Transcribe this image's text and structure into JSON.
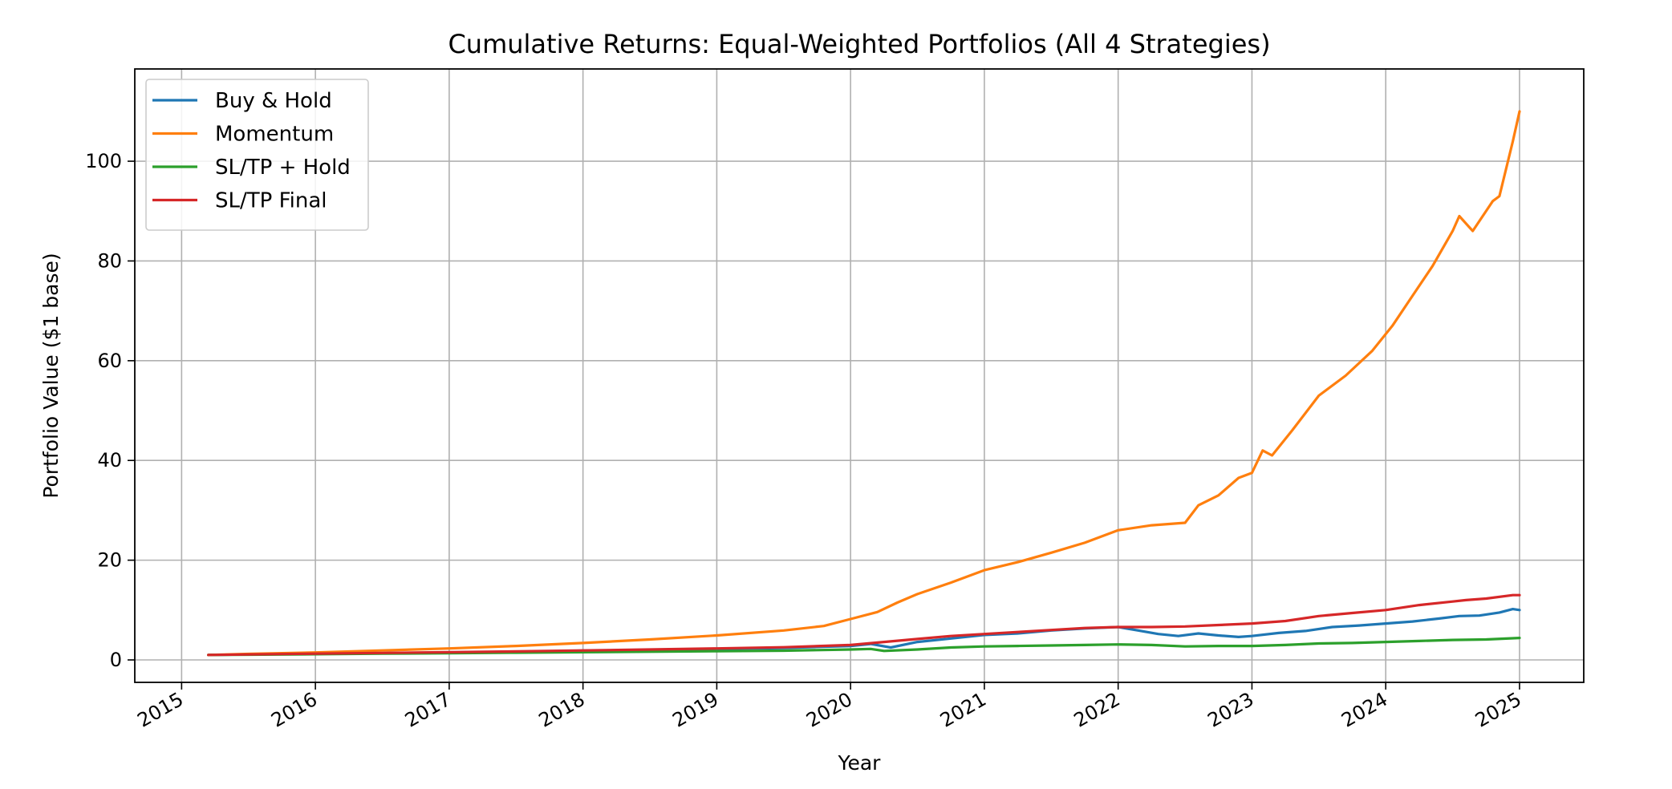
{
  "chart_data": {
    "type": "line",
    "title": "Cumulative Returns: Equal-Weighted Portfolios (All 4 Strategies)",
    "xlabel": "Year",
    "ylabel": "Portfolio Value ($1 base)",
    "xlim": [
      2014.65,
      2025.48
    ],
    "ylim": [
      -4.5,
      118.5
    ],
    "x_ticks": [
      "2015",
      "2016",
      "2017",
      "2018",
      "2019",
      "2020",
      "2021",
      "2022",
      "2023",
      "2024",
      "2025"
    ],
    "y_ticks": [
      "0",
      "20",
      "40",
      "60",
      "80",
      "100"
    ],
    "grid": true,
    "legend_position": "upper-left",
    "series": [
      {
        "name": "Buy & Hold",
        "color": "#1f77b4",
        "x": [
          2015.2,
          2015.5,
          2016.0,
          2016.5,
          2017.0,
          2017.5,
          2018.0,
          2018.5,
          2019.0,
          2019.5,
          2020.0,
          2020.15,
          2020.3,
          2020.5,
          2020.75,
          2021.0,
          2021.25,
          2021.5,
          2021.75,
          2022.0,
          2022.15,
          2022.3,
          2022.45,
          2022.6,
          2022.75,
          2022.9,
          2023.0,
          2023.2,
          2023.4,
          2023.6,
          2023.8,
          2024.0,
          2024.2,
          2024.4,
          2024.55,
          2024.7,
          2024.85,
          2024.95,
          2025.0
        ],
        "values": [
          1.0,
          1.1,
          1.2,
          1.35,
          1.5,
          1.65,
          1.85,
          2.0,
          2.2,
          2.4,
          2.8,
          3.2,
          2.5,
          3.6,
          4.3,
          5.0,
          5.3,
          5.9,
          6.3,
          6.6,
          5.9,
          5.2,
          4.8,
          5.3,
          4.9,
          4.6,
          4.8,
          5.4,
          5.8,
          6.6,
          6.9,
          7.3,
          7.7,
          8.3,
          8.8,
          8.9,
          9.5,
          10.2,
          10.0
        ]
      },
      {
        "name": "Momentum",
        "color": "#ff7f0e",
        "x": [
          2015.2,
          2015.5,
          2016.0,
          2016.5,
          2017.0,
          2017.5,
          2018.0,
          2018.5,
          2019.0,
          2019.5,
          2019.8,
          2020.0,
          2020.2,
          2020.35,
          2020.5,
          2020.75,
          2021.0,
          2021.25,
          2021.5,
          2021.75,
          2022.0,
          2022.25,
          2022.5,
          2022.6,
          2022.75,
          2022.9,
          2023.0,
          2023.08,
          2023.15,
          2023.3,
          2023.5,
          2023.7,
          2023.9,
          2024.05,
          2024.2,
          2024.35,
          2024.5,
          2024.55,
          2024.65,
          2024.8,
          2024.85,
          2024.95,
          2025.0
        ],
        "values": [
          1.0,
          1.2,
          1.5,
          1.9,
          2.3,
          2.8,
          3.4,
          4.1,
          4.9,
          5.9,
          6.8,
          8.2,
          9.6,
          11.5,
          13.2,
          15.5,
          18.0,
          19.6,
          21.5,
          23.5,
          26.0,
          27.0,
          27.5,
          31.0,
          33.0,
          36.5,
          37.5,
          42.0,
          41.0,
          46.0,
          53.0,
          57.0,
          62.0,
          67.0,
          73.0,
          79.0,
          86.0,
          89.0,
          86.0,
          92.0,
          93.0,
          104.0,
          110.0
        ]
      },
      {
        "name": "SL/TP + Hold",
        "color": "#2ca02c",
        "x": [
          2015.2,
          2015.5,
          2016.0,
          2016.5,
          2017.0,
          2017.5,
          2018.0,
          2018.5,
          2019.0,
          2019.5,
          2020.0,
          2020.15,
          2020.25,
          2020.5,
          2020.75,
          2021.0,
          2021.25,
          2021.5,
          2021.75,
          2022.0,
          2022.25,
          2022.5,
          2022.75,
          2023.0,
          2023.25,
          2023.5,
          2023.75,
          2024.0,
          2024.25,
          2024.5,
          2024.75,
          2025.0
        ],
        "values": [
          1.0,
          1.05,
          1.15,
          1.25,
          1.35,
          1.45,
          1.55,
          1.65,
          1.75,
          1.85,
          2.1,
          2.2,
          1.8,
          2.1,
          2.5,
          2.7,
          2.8,
          2.9,
          3.0,
          3.1,
          3.0,
          2.7,
          2.8,
          2.8,
          3.0,
          3.3,
          3.4,
          3.6,
          3.8,
          4.0,
          4.1,
          4.4
        ]
      },
      {
        "name": "SL/TP Final",
        "color": "#d62728",
        "x": [
          2015.2,
          2015.5,
          2016.0,
          2016.5,
          2017.0,
          2017.5,
          2018.0,
          2018.5,
          2019.0,
          2019.5,
          2020.0,
          2020.25,
          2020.5,
          2020.75,
          2021.0,
          2021.25,
          2021.5,
          2021.75,
          2022.0,
          2022.25,
          2022.5,
          2022.75,
          2023.0,
          2023.25,
          2023.5,
          2023.75,
          2024.0,
          2024.25,
          2024.5,
          2024.6,
          2024.75,
          2024.95,
          2025.0
        ],
        "values": [
          1.0,
          1.1,
          1.25,
          1.4,
          1.55,
          1.7,
          1.9,
          2.1,
          2.3,
          2.55,
          3.0,
          3.6,
          4.2,
          4.8,
          5.2,
          5.6,
          6.0,
          6.4,
          6.6,
          6.6,
          6.7,
          7.0,
          7.3,
          7.8,
          8.8,
          9.4,
          10.0,
          11.0,
          11.7,
          12.0,
          12.3,
          13.0,
          13.0
        ]
      }
    ]
  }
}
